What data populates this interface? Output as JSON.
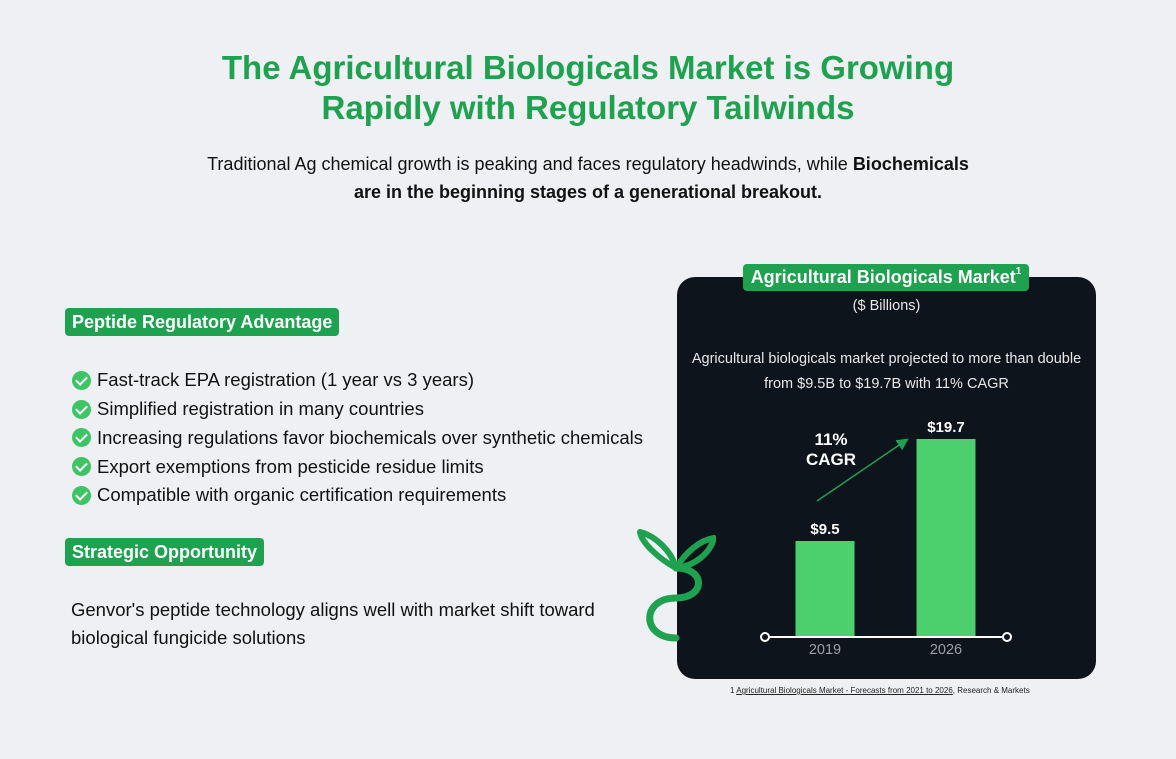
{
  "header": {
    "title_line1": "The Agricultural Biologicals Market is Growing",
    "title_line2": "Rapidly with Regulatory Tailwinds",
    "subtitle_line1_a": "Traditional Ag chemical growth is peaking and faces regulatory headwinds, while ",
    "subtitle_line1_b": "Biochemicals",
    "subtitle_line2": "are in the beginning stages of a generational breakout."
  },
  "peptide": {
    "heading": "Peptide Regulatory Advantage",
    "items": [
      "Fast-track EPA registration (1 year vs 3 years)",
      "Simplified registration in many countries",
      "Increasing regulations favor biochemicals over synthetic chemicals",
      "Export exemptions from pesticide residue limits",
      "Compatible with organic certification requirements"
    ]
  },
  "opportunity": {
    "heading": "Strategic Opportunity",
    "text": "Genvor's peptide technology aligns well with market shift toward biological fungicide solutions"
  },
  "footnote": {
    "number": "1",
    "link_text": "Agricultural Biologicals Market - Forecasts from 2021 to 2026",
    "source": ", Research & Markets"
  },
  "colors": {
    "brand_green": "#1fa24f",
    "bar_green": "#4ccf6d",
    "panel_bg": "#0e141c",
    "page_bg": "#eef0f3"
  },
  "icons": [
    "check-icon",
    "sprout-icon",
    "trend-arrow-icon"
  ],
  "chart_data": {
    "type": "bar",
    "title": "Agricultural Biologicals Market",
    "title_superscript": "1",
    "units": "($ Billions)",
    "annotation": "Agricultural biologicals market projected to more than double from $9.5B to $19.7B with 11% CAGR",
    "categories": [
      "2019",
      "2026"
    ],
    "values": [
      9.5,
      19.7
    ],
    "value_labels": [
      "$9.5",
      "$19.7"
    ],
    "ylim": [
      0,
      20
    ],
    "grid": false,
    "legend": "none",
    "cagr_label_line1": "11%",
    "cagr_label_line2": "CAGR"
  }
}
